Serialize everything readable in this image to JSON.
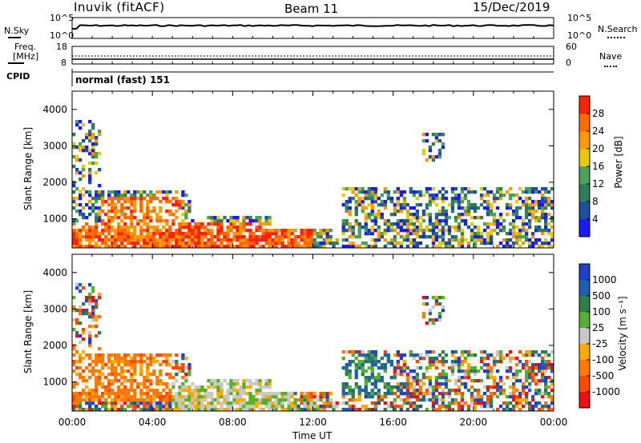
{
  "header": {
    "station": "Inuvik (fitACF)",
    "beam": "Beam 11",
    "date": "15/Dec/2019"
  },
  "sky_panel": {
    "left_label": "N.Sky",
    "right_label": "N.Search",
    "left_ticks": [
      "10^5",
      "10^0"
    ],
    "right_ticks": [
      "10^5",
      "10^0"
    ]
  },
  "freq_panel": {
    "left_label_1": "Freq.",
    "left_label_2": "[MHz]",
    "left_ticks": [
      "18",
      "8"
    ],
    "right_label": "Nave",
    "right_ticks": [
      "60",
      "0"
    ],
    "cpid_label": "CPID",
    "mode_text": "normal (fast) 151"
  },
  "colors": {
    "power_scale": [
      "#1a1aff",
      "#1f4fa0",
      "#2e7d5a",
      "#4aa15a",
      "#e8c80a",
      "#ff9900",
      "#ff6a00",
      "#ff2200"
    ],
    "velocity_scale": [
      "#1f3fd0",
      "#1f5fb0",
      "#2f7f4a",
      "#55b030",
      "#c8c8c8",
      "#ffaa00",
      "#ff7a00",
      "#ff4a00",
      "#ee1010"
    ]
  },
  "chart_data": [
    {
      "type": "heatmap",
      "name": "power",
      "ylabel": "Slant Range [km]",
      "yticks": [
        "1000",
        "2000",
        "3000",
        "4000"
      ],
      "ylim": [
        200,
        4500
      ],
      "xlim": [
        0,
        24
      ],
      "colorbar_label": "Power [dB]",
      "colorbar_ticks": [
        "4",
        "8",
        "12",
        "16",
        "20",
        "24",
        "28"
      ],
      "colorbar_range": [
        0,
        32
      ]
    },
    {
      "type": "heatmap",
      "name": "velocity",
      "ylabel": "Slant Range [km]",
      "yticks": [
        "1000",
        "2000",
        "3000",
        "4000"
      ],
      "ylim": [
        200,
        4500
      ],
      "xlim": [
        0,
        24
      ],
      "xticks": [
        "00:00",
        "04:00",
        "08:00",
        "12:00",
        "16:00",
        "20:00",
        "00:00"
      ],
      "xlabel": "Time UT",
      "colorbar_label": "Velocity [m s⁻¹]",
      "colorbar_ticks": [
        "1000",
        "500",
        "100",
        "25",
        "-25",
        "-100",
        "-500",
        "-1000"
      ]
    }
  ]
}
